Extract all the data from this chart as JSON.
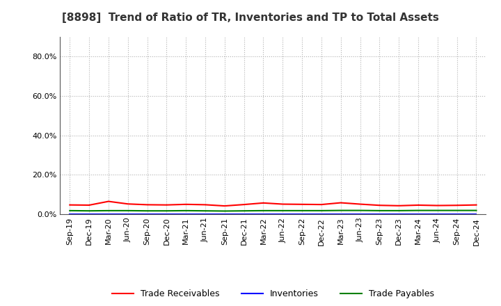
{
  "title": "[8898]  Trend of Ratio of TR, Inventories and TP to Total Assets",
  "x_labels": [
    "Sep-19",
    "Dec-19",
    "Mar-20",
    "Jun-20",
    "Sep-20",
    "Dec-20",
    "Mar-21",
    "Jun-21",
    "Sep-21",
    "Dec-21",
    "Mar-22",
    "Jun-22",
    "Sep-22",
    "Dec-22",
    "Mar-23",
    "Jun-23",
    "Sep-23",
    "Dec-23",
    "Mar-24",
    "Jun-24",
    "Sep-24",
    "Dec-24"
  ],
  "trade_receivables": [
    0.047,
    0.046,
    0.065,
    0.052,
    0.048,
    0.047,
    0.05,
    0.048,
    0.042,
    0.049,
    0.057,
    0.051,
    0.05,
    0.049,
    0.058,
    0.051,
    0.045,
    0.043,
    0.046,
    0.044,
    0.045,
    0.047
  ],
  "inventories": [
    0.001,
    0.001,
    0.001,
    0.001,
    0.001,
    0.001,
    0.001,
    0.001,
    0.001,
    0.001,
    0.001,
    0.001,
    0.001,
    0.001,
    0.001,
    0.001,
    0.001,
    0.001,
    0.001,
    0.001,
    0.001,
    0.001
  ],
  "trade_payables": [
    0.018,
    0.017,
    0.018,
    0.018,
    0.017,
    0.017,
    0.018,
    0.017,
    0.016,
    0.017,
    0.018,
    0.018,
    0.018,
    0.018,
    0.019,
    0.019,
    0.018,
    0.018,
    0.019,
    0.019,
    0.019,
    0.019
  ],
  "tr_color": "#ff0000",
  "inv_color": "#0000ff",
  "tp_color": "#008000",
  "ylim": [
    0,
    0.9
  ],
  "yticks": [
    0.0,
    0.2,
    0.4,
    0.6,
    0.8
  ],
  "background_color": "#ffffff",
  "grid_color": "#b0b0b0",
  "legend_labels": [
    "Trade Receivables",
    "Inventories",
    "Trade Payables"
  ],
  "title_fontsize": 11,
  "tick_fontsize": 8,
  "legend_fontsize": 9
}
